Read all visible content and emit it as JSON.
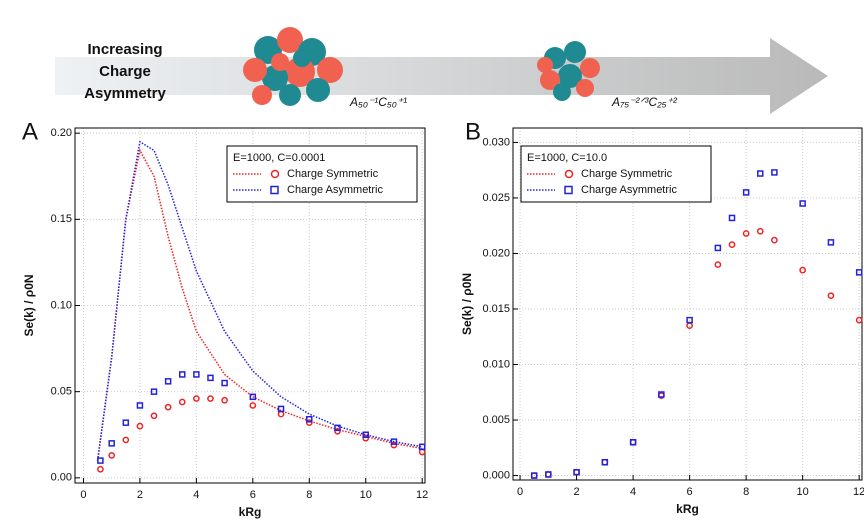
{
  "header": {
    "caption": [
      "Increasing",
      "Charge",
      "Asymmetry"
    ],
    "left_label": "A₅₀⁻¹C₅₀⁺¹",
    "right_label": "A₇₅⁻²ᐟ³C₂₅⁺²"
  },
  "chart_data": [
    {
      "type": "scatter",
      "panel": "A",
      "xlabel": "kRg",
      "ylabel": "Se(k) / ρ0N",
      "legend_title": "E=1000, C=0.0001",
      "legend": "upper right",
      "grid": true,
      "xlim": [
        -0.3,
        12.1
      ],
      "ylim": [
        -0.003,
        0.203
      ],
      "xticks": [
        0,
        2,
        4,
        6,
        8,
        10,
        12
      ],
      "yticks": [
        {
          "value": 0,
          "label": "0.00"
        },
        {
          "value": 0.05,
          "label": "0.05"
        },
        {
          "value": 0.1,
          "label": "0.10"
        },
        {
          "value": 0.15,
          "label": "0.15"
        },
        {
          "value": 0.2,
          "label": "0.20"
        }
      ],
      "series": [
        {
          "name": "Charge Symmetric",
          "color": "#ee2222",
          "marker": "circle",
          "x": [
            0.6,
            1,
            1.5,
            2,
            2.5,
            3,
            3.5,
            4,
            4.5,
            5,
            6,
            7,
            8,
            9,
            10,
            11,
            12
          ],
          "values": [
            0.005,
            0.013,
            0.022,
            0.03,
            0.036,
            0.041,
            0.044,
            0.046,
            0.046,
            0.045,
            0.042,
            0.037,
            0.032,
            0.027,
            0.023,
            0.019,
            0.015
          ],
          "curve_x": [
            0.5,
            1,
            1.5,
            2,
            2.5,
            3,
            3.5,
            4,
            5,
            6,
            7,
            8,
            9,
            10,
            11,
            12
          ],
          "curve": [
            0.01,
            0.07,
            0.15,
            0.19,
            0.175,
            0.14,
            0.11,
            0.085,
            0.06,
            0.047,
            0.039,
            0.033,
            0.028,
            0.024,
            0.02,
            0.017
          ]
        },
        {
          "name": "Charge Asymmetric",
          "color": "#2222dd",
          "marker": "square",
          "x": [
            0.6,
            1,
            1.5,
            2,
            2.5,
            3,
            3.5,
            4,
            4.5,
            5,
            6,
            7,
            8,
            9,
            10,
            11,
            12
          ],
          "values": [
            0.01,
            0.02,
            0.032,
            0.042,
            0.05,
            0.056,
            0.06,
            0.06,
            0.058,
            0.055,
            0.047,
            0.04,
            0.034,
            0.029,
            0.025,
            0.021,
            0.018
          ],
          "curve_x": [
            0.5,
            1,
            1.5,
            2,
            2.5,
            3,
            3.5,
            4,
            5,
            6,
            7,
            8,
            9,
            10,
            11,
            12
          ],
          "curve": [
            0.01,
            0.07,
            0.15,
            0.195,
            0.19,
            0.17,
            0.145,
            0.12,
            0.085,
            0.062,
            0.047,
            0.037,
            0.03,
            0.025,
            0.021,
            0.018
          ]
        }
      ]
    },
    {
      "type": "scatter",
      "panel": "B",
      "xlabel": "kRg",
      "ylabel": "Se(k) / ρ0N",
      "legend_title": "E=1000, C=10.0",
      "legend": "upper left",
      "grid": true,
      "xlim": [
        -0.25,
        12.1
      ],
      "ylim": [
        -0.0004,
        0.0313
      ],
      "xticks": [
        0,
        2,
        4,
        6,
        8,
        10,
        12
      ],
      "yticks": [
        {
          "value": 0,
          "label": "0.000"
        },
        {
          "value": 0.005,
          "label": "0.005"
        },
        {
          "value": 0.01,
          "label": "0.010"
        },
        {
          "value": 0.015,
          "label": "0.015"
        },
        {
          "value": 0.02,
          "label": "0.020"
        },
        {
          "value": 0.025,
          "label": "0.025"
        },
        {
          "value": 0.03,
          "label": "0.030"
        }
      ],
      "series": [
        {
          "name": "Charge Symmetric",
          "color": "#ee2222",
          "marker": "circle",
          "x": [
            0.5,
            1,
            2,
            3,
            4,
            5,
            6,
            7,
            7.5,
            8,
            8.5,
            9,
            10,
            11,
            12
          ],
          "values": [
            0,
            0.0001,
            0.0003,
            0.0012,
            0.003,
            0.0072,
            0.0135,
            0.019,
            0.0208,
            0.0218,
            0.022,
            0.0212,
            0.0185,
            0.0162,
            0.014
          ]
        },
        {
          "name": "Charge Asymmetric",
          "color": "#2222dd",
          "marker": "square",
          "x": [
            0.5,
            1,
            2,
            3,
            4,
            5,
            6,
            7,
            7.5,
            8,
            8.5,
            9,
            10,
            11,
            12
          ],
          "values": [
            0,
            0.0001,
            0.0003,
            0.0012,
            0.003,
            0.0073,
            0.014,
            0.0205,
            0.0232,
            0.0255,
            0.0272,
            0.0273,
            0.0245,
            0.021,
            0.0183
          ]
        }
      ]
    }
  ]
}
